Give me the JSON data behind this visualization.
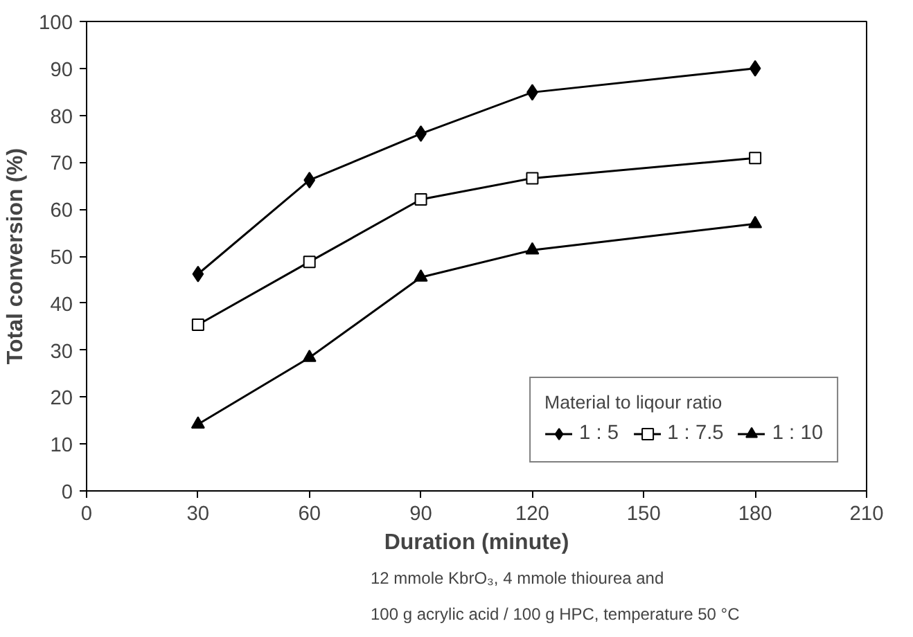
{
  "chart_data": {
    "type": "line",
    "xlabel": "Duration (minute)",
    "ylabel": "Total conversion (%)",
    "x": [
      30,
      60,
      90,
      120,
      180
    ],
    "series": [
      {
        "name": "1 : 5",
        "color": "#000000",
        "marker": "diamond",
        "values": [
          46.2,
          66.2,
          76.1,
          84.9,
          90.0
        ]
      },
      {
        "name": "1 : 7.5",
        "color": "#000000",
        "marker": "square",
        "values": [
          35.4,
          48.8,
          62.1,
          66.6,
          70.9
        ]
      },
      {
        "name": "1 : 10",
        "color": "#000000",
        "marker": "triangle",
        "values": [
          14.2,
          28.4,
          45.5,
          51.3,
          56.9
        ]
      }
    ],
    "xlim": [
      0,
      210
    ],
    "xticks": [
      0,
      30,
      60,
      90,
      120,
      150,
      180,
      210
    ],
    "ylim": [
      0,
      100
    ],
    "yticks": [
      0,
      10,
      20,
      30,
      40,
      50,
      60,
      70,
      80,
      90,
      100
    ],
    "grid": false,
    "legend": "bottom right",
    "legend_title": "Material to liqour ratio",
    "line_style": "solid",
    "annotations": [
      "12 mmole KbrO₃,  4 mmole thiourea and",
      "100 g acrylic acid  / 100 g HPC, temperature 50 °C"
    ]
  }
}
